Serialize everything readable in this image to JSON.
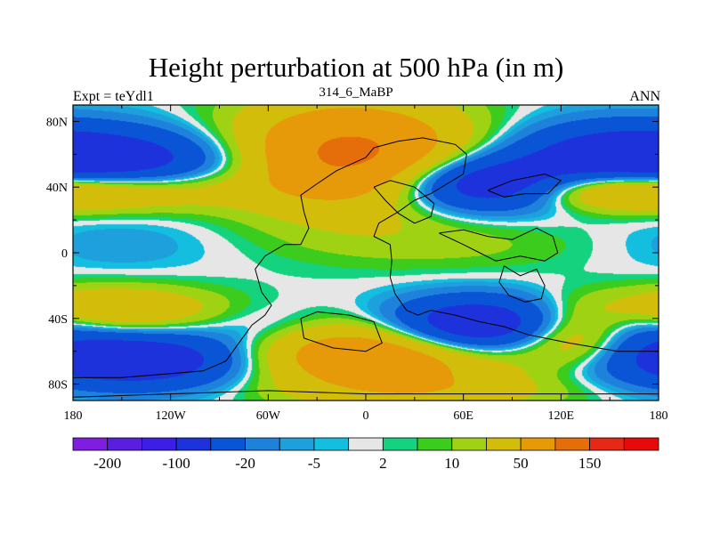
{
  "chart_data": {
    "type": "heatmap",
    "title": "Height perturbation at 500 hPa (in m)",
    "left_string": "Expt = teYdl1",
    "center_string": "314_6_MaBP",
    "right_string": "ANN",
    "x_ticks": [
      {
        "value": -180,
        "label": "180"
      },
      {
        "value": -120,
        "label": "120W"
      },
      {
        "value": -60,
        "label": "60W"
      },
      {
        "value": 0,
        "label": "0"
      },
      {
        "value": 60,
        "label": "60E"
      },
      {
        "value": 120,
        "label": "120E"
      },
      {
        "value": 180,
        "label": "180"
      }
    ],
    "y_ticks": [
      {
        "value": 80,
        "label": "80N"
      },
      {
        "value": 40,
        "label": "40N"
      },
      {
        "value": 0,
        "label": "0"
      },
      {
        "value": -40,
        "label": "40S"
      },
      {
        "value": -80,
        "label": "80S"
      }
    ],
    "xlim": [
      -180,
      180
    ],
    "ylim": [
      -90,
      90
    ],
    "levels": [
      -200,
      -150,
      -100,
      -50,
      -20,
      -10,
      -5,
      -2,
      2,
      5,
      10,
      20,
      50,
      100,
      150,
      200
    ],
    "colorbar_labels": [
      {
        "value": -200,
        "label": "-200"
      },
      {
        "value": -100,
        "label": "-100"
      },
      {
        "value": -20,
        "label": "-20"
      },
      {
        "value": -5,
        "label": "-5"
      },
      {
        "value": 2,
        "label": "2"
      },
      {
        "value": 10,
        "label": "10"
      },
      {
        "value": 50,
        "label": "50"
      },
      {
        "value": 150,
        "label": "150"
      }
    ],
    "colors": [
      "#7f1ee0",
      "#5a1ee0",
      "#3c1ee6",
      "#1e32dc",
      "#0a55d6",
      "#1e82dc",
      "#1ea0dc",
      "#14bede",
      "#e6e6e6",
      "#14d27e",
      "#3ccc1e",
      "#a0d214",
      "#d2be0a",
      "#e69a0a",
      "#e66e0a",
      "#e62814",
      "#e60a0a"
    ],
    "field_components": [
      {
        "lon": -10,
        "lat": 60,
        "value": 115,
        "sx": 50,
        "sy": 22
      },
      {
        "lon": -150,
        "lat": 55,
        "value": -70,
        "sx": 55,
        "sy": 14
      },
      {
        "lon": -160,
        "lat": 38,
        "value": 60,
        "sx": 55,
        "sy": 9
      },
      {
        "lon": 70,
        "lat": 42,
        "value": -90,
        "sx": 38,
        "sy": 12
      },
      {
        "lon": 150,
        "lat": 60,
        "value": -55,
        "sx": 45,
        "sy": 14
      },
      {
        "lon": 150,
        "lat": 38,
        "value": 40,
        "sx": 35,
        "sy": 8
      },
      {
        "lon": 10,
        "lat": 10,
        "value": 10,
        "sx": 55,
        "sy": 14
      },
      {
        "lon": 80,
        "lat": 5,
        "value": 7,
        "sx": 50,
        "sy": 12
      },
      {
        "lon": -150,
        "lat": 5,
        "value": -9,
        "sx": 40,
        "sy": 12
      },
      {
        "lon": -165,
        "lat": -35,
        "value": 55,
        "sx": 50,
        "sy": 10
      },
      {
        "lon": -140,
        "lat": -65,
        "value": -95,
        "sx": 55,
        "sy": 12
      },
      {
        "lon": 0,
        "lat": -62,
        "value": 95,
        "sx": 60,
        "sy": 14
      },
      {
        "lon": 70,
        "lat": -45,
        "value": -110,
        "sx": 40,
        "sy": 12
      },
      {
        "lon": 130,
        "lat": -52,
        "value": 65,
        "sx": 30,
        "sy": 12
      },
      {
        "lon": 165,
        "lat": -45,
        "value": -40,
        "sx": 25,
        "sy": 12
      },
      {
        "lon": -60,
        "lat": -45,
        "value": -20,
        "sx": 30,
        "sy": 10
      },
      {
        "lon": 40,
        "lat": -85,
        "value": 30,
        "sx": 60,
        "sy": 8
      }
    ],
    "coastlines": [
      [
        [
          -180,
          -76
        ],
        [
          -150,
          -76
        ],
        [
          -125,
          -74
        ],
        [
          -100,
          -72
        ],
        [
          -86,
          -66
        ],
        [
          -78,
          -55
        ],
        [
          -70,
          -44
        ],
        [
          -62,
          -38
        ],
        [
          -58,
          -32
        ],
        [
          -64,
          -24
        ],
        [
          -68,
          -10
        ],
        [
          -62,
          -2
        ],
        [
          -50,
          5
        ],
        [
          -40,
          5
        ],
        [
          -35,
          15
        ],
        [
          -38,
          25
        ],
        [
          -40,
          35
        ],
        [
          -30,
          42
        ],
        [
          -18,
          50
        ],
        [
          0,
          58
        ],
        [
          5,
          64
        ],
        [
          20,
          68
        ],
        [
          35,
          70
        ],
        [
          55,
          66
        ],
        [
          62,
          60
        ],
        [
          60,
          48
        ],
        [
          50,
          42
        ],
        [
          40,
          36
        ],
        [
          30,
          32
        ],
        [
          20,
          25
        ],
        [
          8,
          18
        ],
        [
          5,
          10
        ],
        [
          15,
          5
        ],
        [
          16,
          -5
        ],
        [
          15,
          -15
        ],
        [
          18,
          -25
        ],
        [
          25,
          -35
        ],
        [
          32,
          -38
        ],
        [
          40,
          -35
        ],
        [
          55,
          -38
        ],
        [
          70,
          -42
        ],
        [
          85,
          -45
        ],
        [
          100,
          -50
        ],
        [
          125,
          -55
        ],
        [
          155,
          -60
        ],
        [
          180,
          -60
        ]
      ],
      [
        [
          -180,
          -88
        ],
        [
          -60,
          -84
        ],
        [
          0,
          -86
        ],
        [
          60,
          -86
        ],
        [
          180,
          -86
        ]
      ],
      [
        [
          -40,
          -40
        ],
        [
          -30,
          -36
        ],
        [
          -10,
          -38
        ],
        [
          5,
          -42
        ],
        [
          10,
          -55
        ],
        [
          0,
          -60
        ],
        [
          -20,
          -58
        ],
        [
          -38,
          -52
        ],
        [
          -40,
          -40
        ]
      ],
      [
        [
          5,
          40
        ],
        [
          15,
          44
        ],
        [
          30,
          40
        ],
        [
          42,
          30
        ],
        [
          40,
          22
        ],
        [
          30,
          18
        ],
        [
          20,
          24
        ],
        [
          12,
          32
        ],
        [
          5,
          40
        ]
      ],
      [
        [
          45,
          12
        ],
        [
          60,
          14
        ],
        [
          75,
          10
        ],
        [
          90,
          8
        ],
        [
          105,
          15
        ],
        [
          115,
          10
        ],
        [
          118,
          0
        ],
        [
          110,
          -5
        ],
        [
          95,
          -2
        ],
        [
          80,
          -5
        ],
        [
          70,
          0
        ],
        [
          60,
          5
        ],
        [
          45,
          12
        ]
      ],
      [
        [
          85,
          -8
        ],
        [
          95,
          -14
        ],
        [
          105,
          -10
        ],
        [
          110,
          -20
        ],
        [
          108,
          -28
        ],
        [
          98,
          -30
        ],
        [
          88,
          -26
        ],
        [
          82,
          -18
        ],
        [
          85,
          -8
        ]
      ],
      [
        [
          75,
          38
        ],
        [
          90,
          44
        ],
        [
          110,
          48
        ],
        [
          120,
          44
        ],
        [
          112,
          36
        ],
        [
          98,
          36
        ],
        [
          85,
          34
        ],
        [
          75,
          38
        ]
      ]
    ]
  }
}
